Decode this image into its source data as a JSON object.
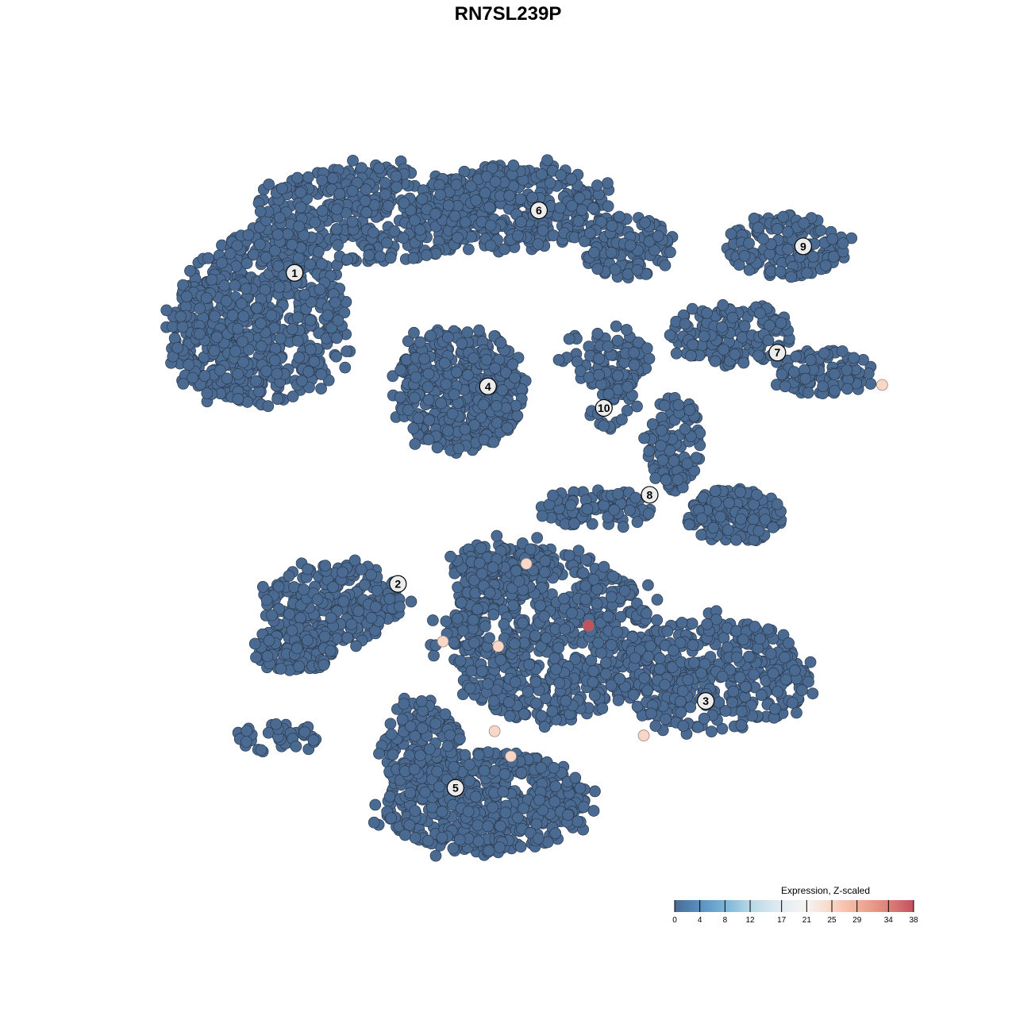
{
  "chart_data": {
    "type": "scatter",
    "title": "RN7SL239P",
    "xlabel": "",
    "ylabel": "",
    "grid": false,
    "axes_visible": false,
    "background_expression": 0,
    "clusters": [
      {
        "label": "1",
        "x": -31.6,
        "y": 32.4
      },
      {
        "label": "2",
        "x": -17.6,
        "y": -10.9
      },
      {
        "label": "3",
        "x": 24.1,
        "y": -27.2
      },
      {
        "label": "4",
        "x": -5.4,
        "y": 16.6
      },
      {
        "label": "5",
        "x": -9.8,
        "y": -39.3
      },
      {
        "label": "6",
        "x": 1.5,
        "y": 41.1
      },
      {
        "label": "7",
        "x": 33.8,
        "y": 21.3
      },
      {
        "label": "8",
        "x": 16.5,
        "y": 1.5
      },
      {
        "label": "9",
        "x": 37.3,
        "y": 36.1
      },
      {
        "label": "10",
        "x": 10.3,
        "y": 13.6
      }
    ],
    "expressing_cells": [
      {
        "x": 48.0,
        "y": 16.8,
        "value": 25
      },
      {
        "x": -0.2,
        "y": -8.1,
        "value": 25
      },
      {
        "x": 8.2,
        "y": -16.7,
        "value": 38
      },
      {
        "x": -11.5,
        "y": -18.9,
        "value": 25
      },
      {
        "x": -4.0,
        "y": -19.6,
        "value": 25
      },
      {
        "x": -4.5,
        "y": -31.4,
        "value": 25
      },
      {
        "x": -2.3,
        "y": -34.9,
        "value": 25
      },
      {
        "x": 15.7,
        "y": -32.0,
        "value": 25
      }
    ],
    "colorbar": {
      "title": "Expression, Z-scaled",
      "ticks": [
        "0",
        "4",
        "8",
        "12",
        "17",
        "21",
        "25",
        "29",
        "34",
        "38"
      ],
      "range": [
        0,
        38
      ],
      "colors": [
        "#4a6a92",
        "#5a90c0",
        "#7bb4d6",
        "#b8d7e7",
        "#e2ecf2",
        "#f6f4f2",
        "#f9d6c5",
        "#f1b19b",
        "#dd8179",
        "#c4515f"
      ],
      "placement": "bottom-right"
    }
  }
}
